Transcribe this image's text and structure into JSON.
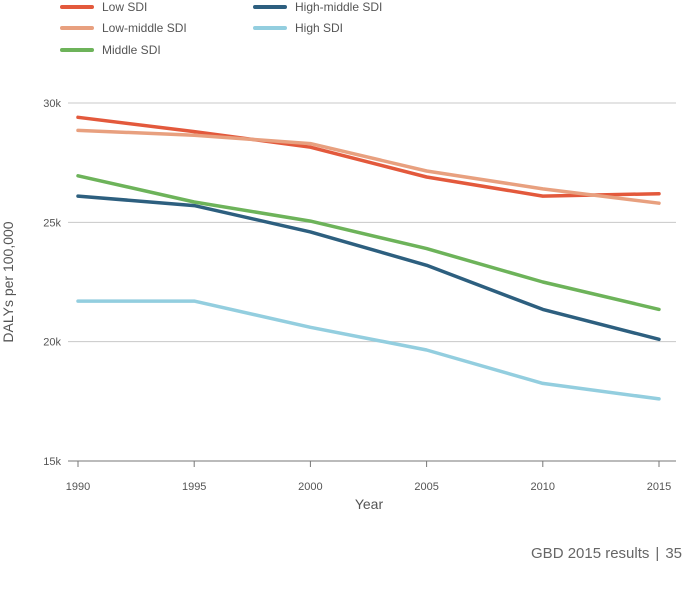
{
  "chart_data": {
    "type": "line",
    "title": "",
    "xlabel": "Year",
    "ylabel": "DALYs per 100,000",
    "x": [
      1990,
      1995,
      2000,
      2005,
      2010,
      2015
    ],
    "x_tick_labels": [
      "1990",
      "1995",
      "2000",
      "2005",
      "2010",
      "2015"
    ],
    "y_ticks": [
      15000,
      20000,
      25000,
      30000
    ],
    "y_tick_labels": [
      "15k",
      "20k",
      "25k",
      "30k"
    ],
    "ylim": [
      15000,
      30000
    ],
    "xlim": [
      1990,
      2015
    ],
    "grid": "horizontal",
    "legend_position": "top-left",
    "series": [
      {
        "name": "Low SDI",
        "color": "#e3593c",
        "values": [
          29400,
          28800,
          28150,
          26900,
          26100,
          26200
        ]
      },
      {
        "name": "Low-middle SDI",
        "color": "#e8a07f",
        "values": [
          28850,
          28650,
          28300,
          27150,
          26400,
          25800
        ]
      },
      {
        "name": "Middle SDI",
        "color": "#6db35a",
        "values": [
          26950,
          25850,
          25050,
          23900,
          22500,
          21350
        ]
      },
      {
        "name": "High-middle SDI",
        "color": "#2d5f7f",
        "values": [
          26100,
          25700,
          24600,
          23200,
          21350,
          20100
        ]
      },
      {
        "name": "High SDI",
        "color": "#93cedf",
        "values": [
          21700,
          21700,
          20600,
          19650,
          18250,
          17600
        ]
      }
    ]
  },
  "footer": {
    "source": "GBD 2015 results",
    "separator": "|",
    "page_number": "35"
  }
}
